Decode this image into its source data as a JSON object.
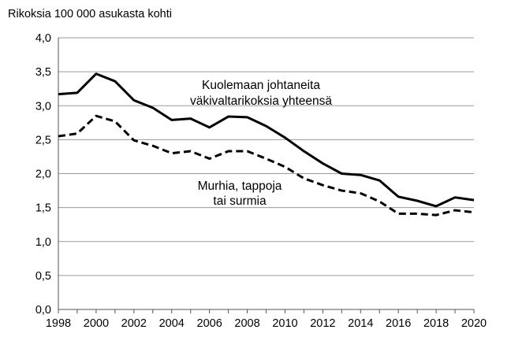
{
  "chart_data": {
    "type": "line",
    "title": "",
    "ylabel": "Rikoksia 100 000 asukasta kohti",
    "xlabel": "",
    "x": [
      1998,
      1999,
      2000,
      2001,
      2002,
      2003,
      2004,
      2005,
      2006,
      2007,
      2008,
      2009,
      2010,
      2011,
      2012,
      2013,
      2014,
      2015,
      2016,
      2017,
      2018,
      2019,
      2020
    ],
    "xticks": [
      "1998",
      "2000",
      "2002",
      "2004",
      "2006",
      "2008",
      "2010",
      "2012",
      "2014",
      "2016",
      "2018",
      "2020"
    ],
    "yticks": [
      "0,0",
      "0,5",
      "1,0",
      "1,5",
      "2,0",
      "2,5",
      "3,0",
      "3,5",
      "4,0"
    ],
    "ylim": [
      0,
      4
    ],
    "xlim": [
      1998,
      2020
    ],
    "grid": true,
    "series": [
      {
        "name": "Kuolemaan johtaneita väkivaltarikoksia yhteensä",
        "label_lines": [
          "Kuolemaan johtaneita",
          "väkivaltarikoksia yhteensä"
        ],
        "style": "solid",
        "color": "#000000",
        "values": [
          3.17,
          3.19,
          3.47,
          3.36,
          3.08,
          2.97,
          2.79,
          2.81,
          2.68,
          2.84,
          2.83,
          2.7,
          2.53,
          2.33,
          2.15,
          2.0,
          1.98,
          1.9,
          1.66,
          1.6,
          1.52,
          1.65,
          1.61
        ]
      },
      {
        "name": "Murhia, tappoja tai surmia",
        "label_lines": [
          "Murhia, tappoja",
          "tai surmia"
        ],
        "style": "dashed",
        "color": "#000000",
        "values": [
          2.55,
          2.59,
          2.85,
          2.77,
          2.49,
          2.41,
          2.3,
          2.33,
          2.22,
          2.33,
          2.33,
          2.22,
          2.1,
          1.93,
          1.83,
          1.75,
          1.71,
          1.59,
          1.41,
          1.41,
          1.39,
          1.46,
          1.43
        ]
      }
    ]
  }
}
